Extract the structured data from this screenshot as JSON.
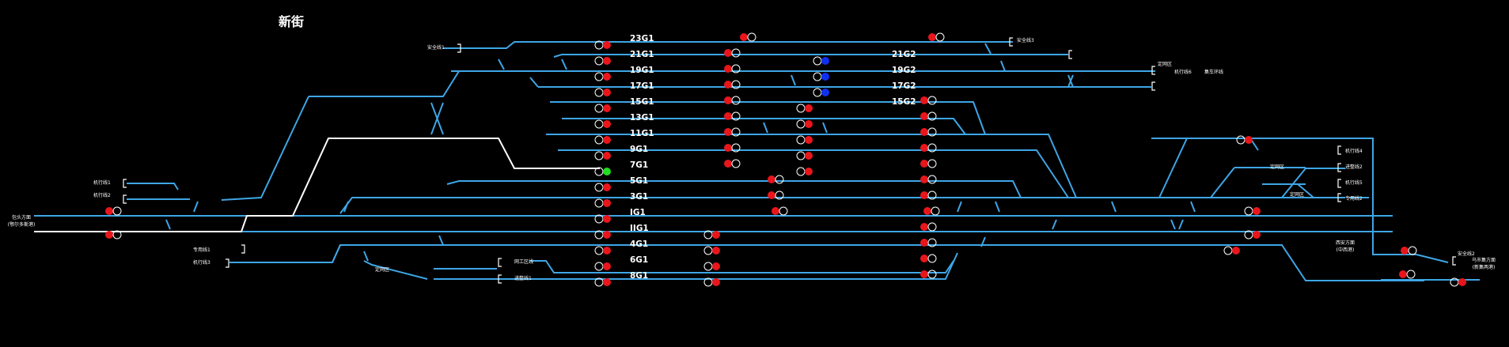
{
  "station": {
    "title": "新街"
  },
  "colors": {
    "background": "#000000",
    "track_idle": "#3ea6e6",
    "route_locked": "#ffffff",
    "signal_red": "#e8161b",
    "signal_green": "#22dd22",
    "signal_blue": "#1030f0",
    "signal_off": "#ffffff"
  },
  "tracks": [
    {
      "id": "23G1",
      "label": "23G1"
    },
    {
      "id": "21G1",
      "label": "21G1"
    },
    {
      "id": "19G1",
      "label": "19G1"
    },
    {
      "id": "17G1",
      "label": "17G1"
    },
    {
      "id": "15G1",
      "label": "15G1"
    },
    {
      "id": "13G1",
      "label": "13G1"
    },
    {
      "id": "11G1",
      "label": "11G1"
    },
    {
      "id": "9G1",
      "label": "9G1"
    },
    {
      "id": "7G1",
      "label": "7G1"
    },
    {
      "id": "5G1",
      "label": "5G1"
    },
    {
      "id": "3G1",
      "label": "3G1"
    },
    {
      "id": "IG1",
      "label": "IG1"
    },
    {
      "id": "IIG1",
      "label": "IIG1"
    },
    {
      "id": "4G1",
      "label": "4G1"
    },
    {
      "id": "6G1",
      "label": "6G1"
    },
    {
      "id": "8G1",
      "label": "8G1"
    },
    {
      "id": "21G2",
      "label": "21G2"
    },
    {
      "id": "19G2",
      "label": "19G2"
    },
    {
      "id": "17G2",
      "label": "17G2"
    },
    {
      "id": "15G2",
      "label": "15G2"
    }
  ],
  "side_labels": {
    "anquanxian1": "安全线1",
    "anquanxian3": "安全线3",
    "diaochexian1": "机行线1",
    "diaochexian2": "机行线2",
    "baotou_direction": "包头方面",
    "baotou_sub": "(鄂尔多斯港)",
    "zhuanyongxian1": "专用线1",
    "diaochexian3": "机行线3",
    "dingwangqu_left": "定网区",
    "wanggongqu": "网工区线",
    "jiweixian1": "进整线1",
    "dingwangqu_top": "定网区",
    "diaochexian6": "机行线6",
    "jicheshipei": "集车环线",
    "diaochexian4": "机行线4",
    "jiweixian2": "进整线2",
    "dingwangqu_r1": "定网区",
    "diaochexian5": "机行线5",
    "dingwangqu_r2": "定网区",
    "zhuanyongxian2": "专用线2",
    "xian_direction": "西安方面",
    "xian_sub": "(中西港)",
    "anquanxian2": "安全线2",
    "wuhai_direction": "乌市集方面",
    "wuhai_sub": "(新集两港)"
  }
}
